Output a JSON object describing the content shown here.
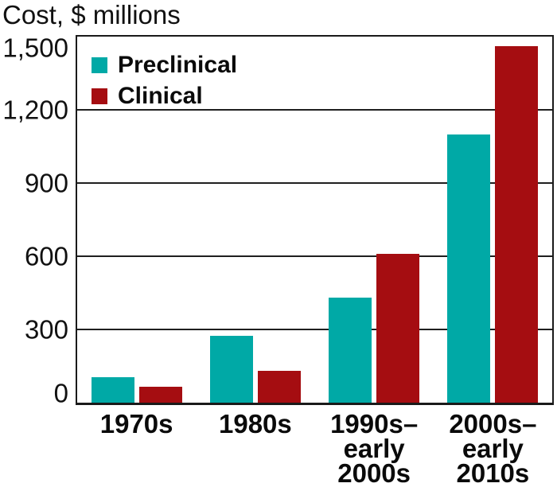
{
  "chart_data": {
    "type": "bar",
    "title": "Cost, $ millions",
    "categories": [
      "1970s",
      "1980s",
      "1990s–\nearly\n2000s",
      "2000s–\nearly\n2010s"
    ],
    "series": [
      {
        "name": "Preclinical",
        "color": "#00a9a6",
        "values": [
          105,
          275,
          430,
          1100
        ]
      },
      {
        "name": "Clinical",
        "color": "#a50d11",
        "values": [
          65,
          130,
          610,
          1460
        ]
      }
    ],
    "ylim": [
      0,
      1500
    ],
    "yticks": [
      0,
      300,
      600,
      900,
      1200,
      1500
    ],
    "ytick_labels": [
      "0",
      "300",
      "600",
      "900",
      "1,200",
      "1,500"
    ],
    "xlabel": "",
    "ylabel": "Cost, $ millions",
    "grid": "horizontal",
    "legend_position": "top-left-inside",
    "colors": {
      "axis": "#1a1a1a",
      "gridline": "#1f1f1f",
      "text": "#0a0a0a",
      "background": "#ffffff"
    }
  }
}
